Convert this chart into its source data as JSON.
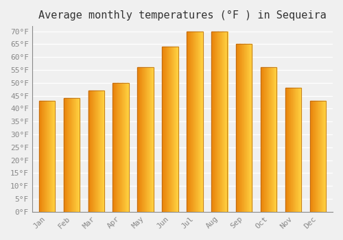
{
  "title": "Average monthly temperatures (°F ) in Sequeira",
  "months": [
    "Jan",
    "Feb",
    "Mar",
    "Apr",
    "May",
    "Jun",
    "Jul",
    "Aug",
    "Sep",
    "Oct",
    "Nov",
    "Dec"
  ],
  "values": [
    43,
    44,
    47,
    50,
    56,
    64,
    70,
    70,
    65,
    56,
    48,
    43
  ],
  "bar_color_left": "#E8820A",
  "bar_color_right": "#FFD040",
  "background_color": "#F0F0F0",
  "grid_color": "#FFFFFF",
  "ylim": [
    0,
    72
  ],
  "yticks": [
    0,
    5,
    10,
    15,
    20,
    25,
    30,
    35,
    40,
    45,
    50,
    55,
    60,
    65,
    70
  ],
  "ylabel_suffix": "°F",
  "title_fontsize": 11,
  "tick_fontsize": 8,
  "font_family": "monospace"
}
